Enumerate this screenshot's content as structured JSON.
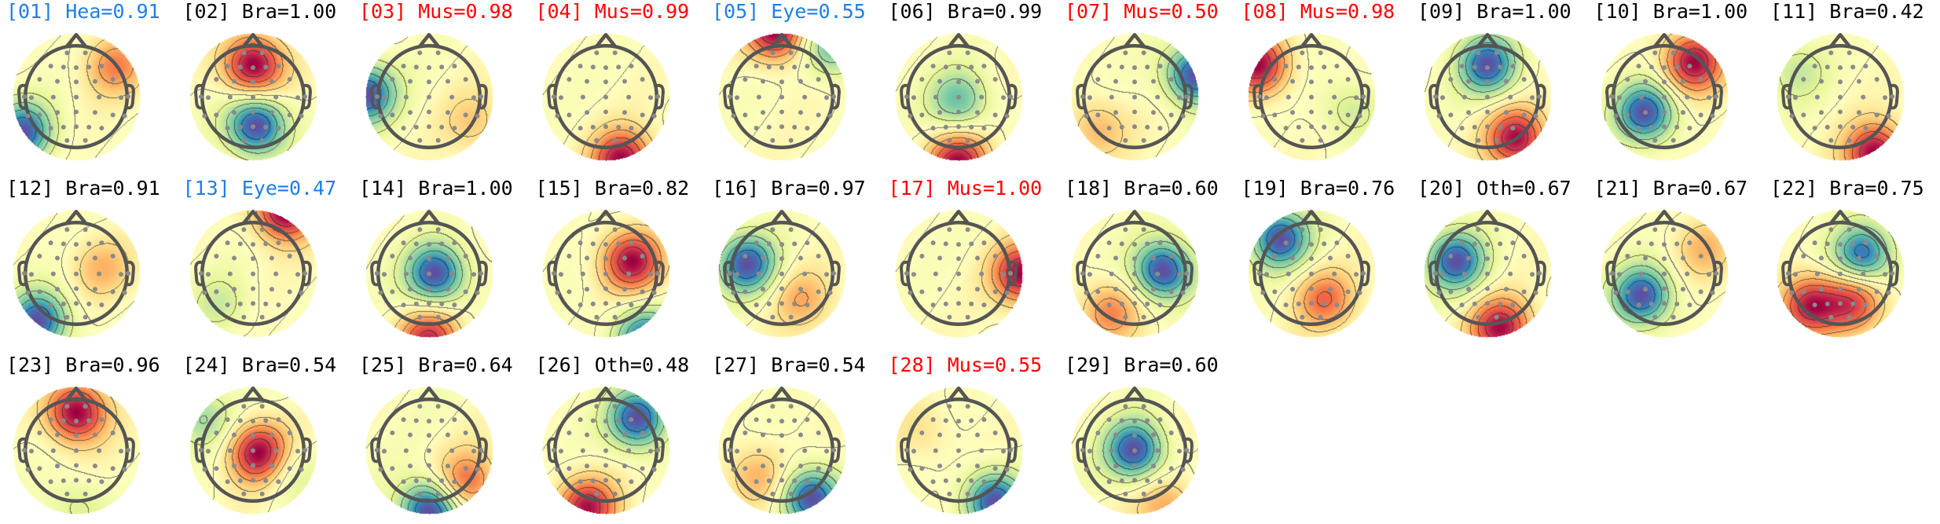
{
  "colors": {
    "brain": "#000000",
    "muscle": "#ff0000",
    "eye": "#1f7fe6",
    "heart": "#1f7fe6",
    "other": "#000000",
    "contour": "#2a2a2a",
    "head_outline": "#555555",
    "electrode": "#8a8a8a",
    "colormap": [
      "#5e4fa2",
      "#3288bd",
      "#66c2a5",
      "#abdda4",
      "#e6f598",
      "#ffffbf",
      "#fee08b",
      "#fdae61",
      "#f46d43",
      "#d53e4f",
      "#9e0142"
    ]
  },
  "components": [
    {
      "label": "[01] Hea=0.91",
      "category": "heart",
      "pattern": [
        {
          "dx": -0.85,
          "dy": 0.55,
          "sign": -1,
          "amp": 1.0
        },
        {
          "dx": 0.6,
          "dy": -0.5,
          "sign": 1,
          "amp": 0.55
        }
      ]
    },
    {
      "label": "[02] Bra=1.00",
      "category": "brain",
      "pattern": [
        {
          "dx": 0.0,
          "dy": -0.5,
          "sign": 1,
          "amp": 1.0
        },
        {
          "dx": 0.05,
          "dy": 0.45,
          "sign": -1,
          "amp": 1.0
        }
      ]
    },
    {
      "label": "[03] Mus=0.98",
      "category": "muscle",
      "pattern": [
        {
          "dx": -1.0,
          "dy": -0.05,
          "sign": -1,
          "amp": 0.9
        },
        {
          "dx": 0.7,
          "dy": 0.4,
          "sign": 1,
          "amp": 0.25
        }
      ]
    },
    {
      "label": "[04] Mus=0.99",
      "category": "muscle",
      "pattern": [
        {
          "dx": 0.25,
          "dy": 1.0,
          "sign": 1,
          "amp": 1.0
        }
      ]
    },
    {
      "label": "[05] Eye=0.55",
      "category": "eye",
      "pattern": [
        {
          "dx": -0.1,
          "dy": -1.05,
          "sign": 1,
          "amp": 1.0
        },
        {
          "dx": 0.8,
          "dy": -0.8,
          "sign": -1,
          "amp": 0.6
        }
      ]
    },
    {
      "label": "[06] Bra=0.99",
      "category": "brain",
      "pattern": [
        {
          "dx": 0.0,
          "dy": 0.05,
          "sign": -1,
          "amp": 0.55
        },
        {
          "dx": 0.0,
          "dy": 1.05,
          "sign": 1,
          "amp": 0.9
        }
      ]
    },
    {
      "label": "[07] Mus=0.50",
      "category": "muscle",
      "pattern": [
        {
          "dx": 0.95,
          "dy": -0.35,
          "sign": -1,
          "amp": 1.0
        },
        {
          "dx": -0.6,
          "dy": 0.5,
          "sign": 1,
          "amp": 0.35
        }
      ]
    },
    {
      "label": "[08] Mus=0.98",
      "category": "muscle",
      "pattern": [
        {
          "dx": -0.85,
          "dy": -0.5,
          "sign": 1,
          "amp": 1.0
        },
        {
          "dx": 0.6,
          "dy": 0.2,
          "sign": -1,
          "amp": 0.3
        }
      ]
    },
    {
      "label": "[09] Bra=1.00",
      "category": "brain",
      "pattern": [
        {
          "dx": 0.0,
          "dy": -0.5,
          "sign": -1,
          "amp": 1.0
        },
        {
          "dx": 0.45,
          "dy": 0.65,
          "sign": 1,
          "amp": 1.0
        }
      ]
    },
    {
      "label": "[10] Bra=1.00",
      "category": "brain",
      "pattern": [
        {
          "dx": 0.45,
          "dy": -0.55,
          "sign": 1,
          "amp": 1.0
        },
        {
          "dx": -0.3,
          "dy": 0.25,
          "sign": -1,
          "amp": 1.0
        }
      ]
    },
    {
      "label": "[11] Bra=0.42",
      "category": "brain",
      "pattern": [
        {
          "dx": 0.55,
          "dy": 0.9,
          "sign": 1,
          "amp": 1.0
        },
        {
          "dx": -0.7,
          "dy": -0.4,
          "sign": -1,
          "amp": 0.3
        }
      ]
    },
    {
      "label": "[12] Bra=0.91",
      "category": "brain",
      "pattern": [
        {
          "dx": -0.6,
          "dy": 0.75,
          "sign": -1,
          "amp": 1.0
        },
        {
          "dx": 0.4,
          "dy": -0.1,
          "sign": 1,
          "amp": 0.35
        }
      ]
    },
    {
      "label": "[13] Eye=0.47",
      "category": "eye",
      "pattern": [
        {
          "dx": 0.5,
          "dy": -1.0,
          "sign": 1,
          "amp": 1.0
        },
        {
          "dx": -0.5,
          "dy": 0.5,
          "sign": -1,
          "amp": 0.25
        }
      ]
    },
    {
      "label": "[14] Bra=1.00",
      "category": "brain",
      "pattern": [
        {
          "dx": 0.1,
          "dy": 0.0,
          "sign": -1,
          "amp": 1.0
        },
        {
          "dx": 0.0,
          "dy": 1.05,
          "sign": 1,
          "amp": 0.85
        }
      ]
    },
    {
      "label": "[15] Bra=0.82",
      "category": "brain",
      "pattern": [
        {
          "dx": 0.4,
          "dy": -0.2,
          "sign": 1,
          "amp": 0.9
        },
        {
          "dx": 0.6,
          "dy": 1.0,
          "sign": -1,
          "amp": 0.8
        }
      ]
    },
    {
      "label": "[16] Bra=0.97",
      "category": "brain",
      "pattern": [
        {
          "dx": -0.55,
          "dy": -0.15,
          "sign": -1,
          "amp": 1.0
        },
        {
          "dx": 0.3,
          "dy": 0.4,
          "sign": 1,
          "amp": 0.4
        }
      ]
    },
    {
      "label": "[17] Mus=1.00",
      "category": "muscle",
      "pattern": [
        {
          "dx": 1.0,
          "dy": 0.0,
          "sign": 1,
          "amp": 1.0
        }
      ]
    },
    {
      "label": "[18] Bra=0.60",
      "category": "brain",
      "pattern": [
        {
          "dx": 0.45,
          "dy": -0.05,
          "sign": -1,
          "amp": 1.0
        },
        {
          "dx": -0.4,
          "dy": 0.6,
          "sign": 1,
          "amp": 0.5
        }
      ]
    },
    {
      "label": "[19] Bra=0.76",
      "category": "brain",
      "pattern": [
        {
          "dx": -0.5,
          "dy": -0.55,
          "sign": -1,
          "amp": 1.0
        },
        {
          "dx": 0.2,
          "dy": 0.4,
          "sign": 1,
          "amp": 0.6
        }
      ]
    },
    {
      "label": "[20] Oth=0.67",
      "category": "other",
      "pattern": [
        {
          "dx": -0.5,
          "dy": -0.2,
          "sign": -1,
          "amp": 1.0
        },
        {
          "dx": 0.2,
          "dy": 0.85,
          "sign": 1,
          "amp": 1.0
        }
      ]
    },
    {
      "label": "[21] Bra=0.67",
      "category": "brain",
      "pattern": [
        {
          "dx": -0.35,
          "dy": 0.35,
          "sign": -1,
          "amp": 1.0
        },
        {
          "dx": 0.6,
          "dy": -0.4,
          "sign": 1,
          "amp": 0.35
        }
      ]
    },
    {
      "label": "[22] Bra=0.75",
      "category": "brain",
      "pattern": [
        {
          "dx": 0.35,
          "dy": -0.3,
          "sign": -1,
          "amp": 1.0
        },
        {
          "dx": -0.5,
          "dy": 0.5,
          "sign": 1,
          "amp": 1.0
        },
        {
          "dx": 0.2,
          "dy": 0.45,
          "sign": 1,
          "amp": 0.8
        }
      ]
    },
    {
      "label": "[23] Bra=0.96",
      "category": "brain",
      "pattern": [
        {
          "dx": 0.0,
          "dy": -0.6,
          "sign": 1,
          "amp": 1.0
        },
        {
          "dx": 0.0,
          "dy": 0.9,
          "sign": -1,
          "amp": 0.25
        }
      ]
    },
    {
      "label": "[24] Bra=0.54",
      "category": "brain",
      "pattern": [
        {
          "dx": 0.1,
          "dy": 0.05,
          "sign": 1,
          "amp": 1.0
        },
        {
          "dx": -0.8,
          "dy": -0.5,
          "sign": -1,
          "amp": 0.4
        },
        {
          "dx": 0.5,
          "dy": 0.3,
          "sign": -1,
          "amp": 0.3
        }
      ]
    },
    {
      "label": "[25] Bra=0.64",
      "category": "brain",
      "pattern": [
        {
          "dx": 0.0,
          "dy": 0.95,
          "sign": -1,
          "amp": 0.8
        },
        {
          "dx": 0.6,
          "dy": 0.5,
          "sign": 1,
          "amp": 0.45
        }
      ]
    },
    {
      "label": "[26] Oth=0.48",
      "category": "other",
      "pattern": [
        {
          "dx": 0.5,
          "dy": -0.5,
          "sign": -1,
          "amp": 1.0
        },
        {
          "dx": -0.3,
          "dy": 0.9,
          "sign": 1,
          "amp": 0.9
        }
      ]
    },
    {
      "label": "[27] Bra=0.54",
      "category": "brain",
      "pattern": [
        {
          "dx": 0.45,
          "dy": 0.75,
          "sign": -1,
          "amp": 1.0
        },
        {
          "dx": -0.4,
          "dy": 0.4,
          "sign": 1,
          "amp": 0.4
        }
      ]
    },
    {
      "label": "[28] Mus=0.55",
      "category": "muscle",
      "pattern": [
        {
          "dx": 0.55,
          "dy": 0.8,
          "sign": -1,
          "amp": 1.0
        },
        {
          "dx": -0.6,
          "dy": -0.3,
          "sign": 1,
          "amp": 0.2
        }
      ]
    },
    {
      "label": "[29] Bra=0.60",
      "category": "brain",
      "pattern": [
        {
          "dx": 0.0,
          "dy": 0.0,
          "sign": -1,
          "amp": 0.7
        },
        {
          "dx": 0.5,
          "dy": 0.9,
          "sign": 1,
          "amp": 0.3
        }
      ]
    }
  ]
}
